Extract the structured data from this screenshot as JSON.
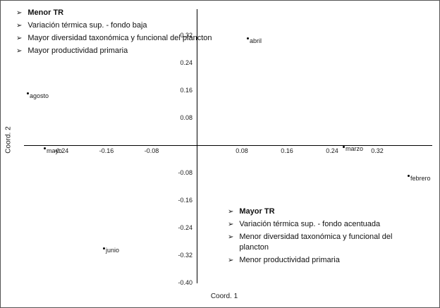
{
  "chart_data": {
    "type": "scatter",
    "title": "",
    "xlabel": "Coord. 1",
    "ylabel": "Coord. 2",
    "xlim": [
      -0.31,
      0.42
    ],
    "ylim": [
      -0.44,
      0.4
    ],
    "grid": false,
    "legend": "none",
    "x_ticks": [
      -0.24,
      -0.16,
      -0.08,
      0.08,
      0.16,
      0.24,
      0.32
    ],
    "y_ticks": [
      0.32,
      0.24,
      0.16,
      0.08,
      -0.08,
      -0.16,
      -0.24,
      -0.32,
      -0.4
    ],
    "points": [
      {
        "label": "abril",
        "x": 0.09,
        "y": 0.31
      },
      {
        "label": "agosto",
        "x": -0.3,
        "y": 0.15
      },
      {
        "label": "mayo",
        "x": -0.27,
        "y": -0.01
      },
      {
        "label": "marzo",
        "x": 0.26,
        "y": -0.005
      },
      {
        "label": "febrero",
        "x": 0.375,
        "y": -0.09
      },
      {
        "label": "junio",
        "x": -0.165,
        "y": -0.3
      }
    ]
  },
  "axes": {
    "x_label": "Coord. 1",
    "y_label": "Coord. 2"
  },
  "annotations": {
    "bullet": "➢",
    "top_left": {
      "items": [
        {
          "text": "Menor TR",
          "bold": true
        },
        {
          "text": "Variación térmica sup. - fondo baja",
          "bold": false
        },
        {
          "text": "Mayor diversidad taxonómica y funcional del plancton",
          "bold": false
        },
        {
          "text": "Mayor productividad primaria",
          "bold": false
        }
      ]
    },
    "bottom_right": {
      "items": [
        {
          "text": "Mayor TR",
          "bold": true
        },
        {
          "text": "Variación térmica sup. - fondo acentuada",
          "bold": false
        },
        {
          "text": "Menor diversidad taxonómica y funcional del plancton",
          "bold": false
        },
        {
          "text": "Menor productividad primaria",
          "bold": false
        }
      ]
    }
  },
  "colors": {
    "point": "#000000",
    "axis": "#000000",
    "text": "#111111",
    "background": "#ffffff"
  }
}
